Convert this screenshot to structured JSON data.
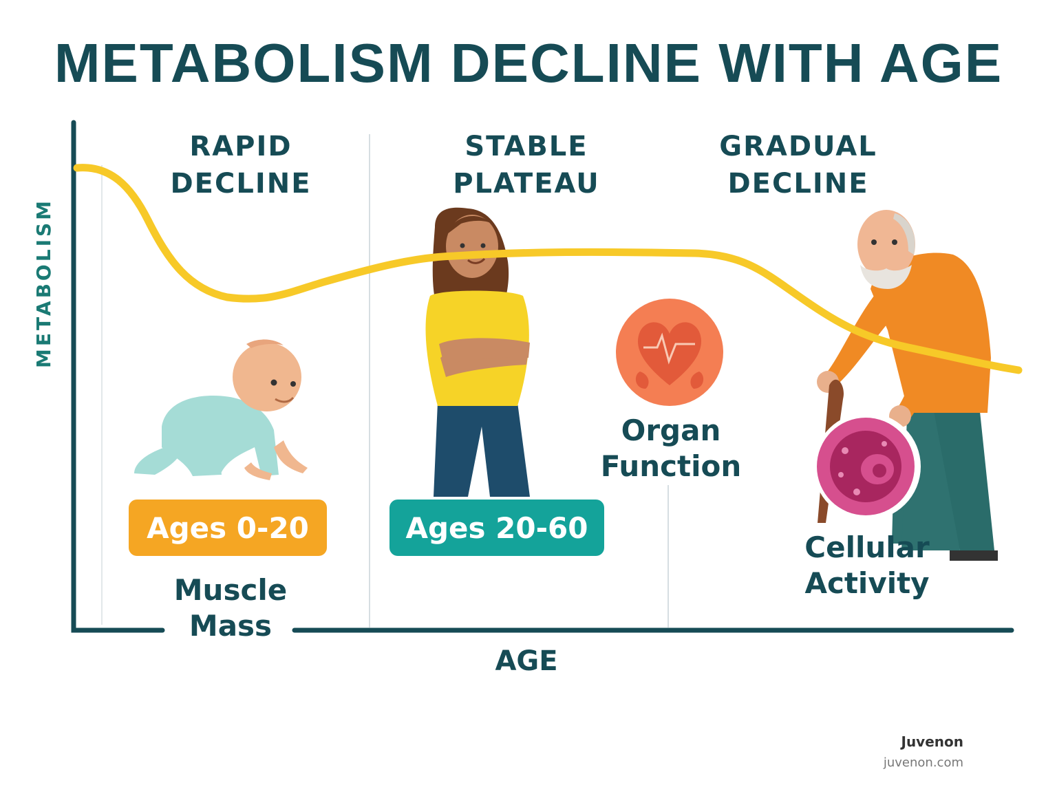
{
  "title": "METABOLISM DECLINE WITH AGE",
  "axes": {
    "y_label": "METABOLISM",
    "x_label": "AGE"
  },
  "phases": [
    {
      "line1": "RAPID",
      "line2": "DECLINE"
    },
    {
      "line1": "STABLE",
      "line2": "PLATEAU"
    },
    {
      "line1": "GRADUAL",
      "line2": "DECLINE"
    }
  ],
  "age_badges": [
    {
      "label": "Ages 0-20",
      "color": "#f5a623"
    },
    {
      "label": "Ages 20-60",
      "color": "#14a39a"
    }
  ],
  "factors": {
    "muscle": {
      "line1": "Muscle",
      "line2": "Mass"
    },
    "organ": {
      "line1": "Organ",
      "line2": "Function"
    },
    "cellular": {
      "line1": "Cellular",
      "line2": "Activity"
    }
  },
  "figures": {
    "baby": "baby-crawling-illustration",
    "woman": "woman-arms-crossed-illustration",
    "man": "elderly-man-with-cane-illustration"
  },
  "icons": {
    "organ": "heart-kidney-icon",
    "cell": "cell-icon"
  },
  "colors": {
    "curve": "#f7c928",
    "axis": "#164b55",
    "text": "#164b55",
    "organ_icon": "#f47e53",
    "cell_icon": "#d64f8e"
  },
  "footer": {
    "brand": "Juvenon",
    "site": "juvenon.com"
  }
}
